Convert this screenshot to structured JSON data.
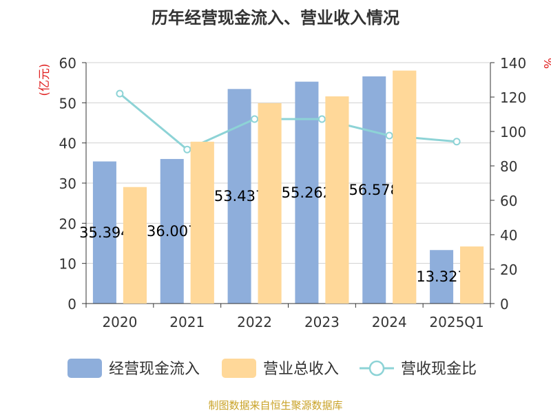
{
  "title": "历年经营现金流入、营业收入情况",
  "footer": "制图数据来自恒生聚源数据库",
  "chart_data": {
    "type": "bar",
    "categories": [
      "2020",
      "2021",
      "2022",
      "2023",
      "2024",
      "2025Q1"
    ],
    "series": [
      {
        "name": "经营现金流入",
        "type": "bar",
        "axis": "left",
        "color": "#8eaedb",
        "values": [
          35.394,
          36.007,
          53.437,
          55.262,
          56.578,
          13.327
        ],
        "data_labels": [
          "35.394",
          "36.007",
          "53.437",
          "55.262",
          "56.578",
          "13.327"
        ]
      },
      {
        "name": "营业总收入",
        "type": "bar",
        "axis": "left",
        "color": "#ffd899",
        "values": [
          29.0,
          40.3,
          49.9,
          51.6,
          58.0,
          14.2
        ]
      },
      {
        "name": "营收现金比",
        "type": "line",
        "axis": "right",
        "color": "#8dd3d6",
        "values": [
          122,
          89.5,
          107.2,
          107.2,
          97.6,
          94.1
        ]
      }
    ],
    "ylabel_left": "(亿元)",
    "ylabel_right": "%",
    "ylim_left": [
      0,
      60
    ],
    "ylim_right": [
      0,
      140
    ],
    "yticks_left": [
      "0",
      "10",
      "20",
      "30",
      "40",
      "50",
      "60"
    ],
    "yticks_right": [
      "0",
      "20",
      "40",
      "60",
      "80",
      "100",
      "120",
      "140"
    ],
    "grid": true,
    "legend_position": "bottom"
  }
}
